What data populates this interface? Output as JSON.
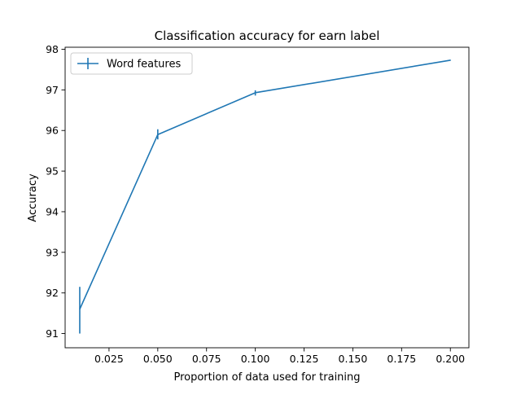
{
  "chart_data": {
    "type": "line",
    "title": "Classification accuracy for earn label",
    "xlabel": "Proportion of data used for training",
    "ylabel": "Accuracy",
    "xlim": [
      0.0025,
      0.2095
    ],
    "ylim": [
      90.65,
      98.05
    ],
    "xticks": [
      0.025,
      0.05,
      0.075,
      0.1,
      0.125,
      0.15,
      0.175,
      0.2
    ],
    "xtick_labels": [
      "0.025",
      "0.050",
      "0.075",
      "0.100",
      "0.125",
      "0.150",
      "0.175",
      "0.200"
    ],
    "yticks": [
      91,
      92,
      93,
      94,
      95,
      96,
      97,
      98
    ],
    "ytick_labels": [
      "91",
      "92",
      "93",
      "94",
      "95",
      "96",
      "97",
      "98"
    ],
    "grid": false,
    "legend_position": "upper-left",
    "series": [
      {
        "name": "Word features",
        "color": "#1f77b4",
        "x": [
          0.01,
          0.05,
          0.1,
          0.2
        ],
        "y": [
          91.6,
          95.9,
          96.93,
          97.73
        ],
        "yerr_low": [
          91.0,
          95.78,
          96.86,
          97.72
        ],
        "yerr_high": [
          92.15,
          96.03,
          96.99,
          97.74
        ]
      }
    ]
  }
}
